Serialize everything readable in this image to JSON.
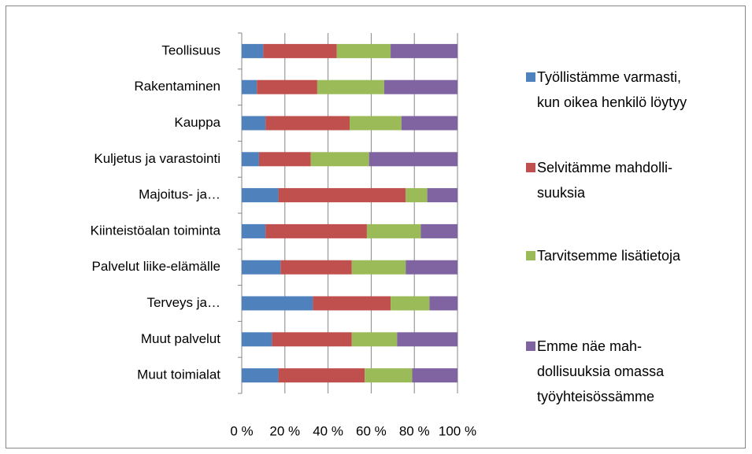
{
  "chart_data": {
    "type": "stacked_barh",
    "categories": [
      "Teollisuus",
      "Rakentaminen",
      "Kauppa",
      "Kuljetus ja varastointi",
      "Majoitus- ja…",
      "Kiinteistöalan toiminta",
      "Palvelut liike-elämälle",
      "Terveys ja…",
      "Muut palvelut",
      "Muut toimialat"
    ],
    "series": [
      {
        "name": "Työllistämme varmasti,\nkun oikea henkilö löytyy",
        "color": "#4f81bd",
        "values": [
          10,
          7,
          11,
          8,
          17,
          11,
          18,
          33,
          14,
          17
        ]
      },
      {
        "name": "Selvitämme mahdolli-\nsuuksia",
        "color": "#c0504d",
        "values": [
          34,
          28,
          39,
          24,
          59,
          47,
          33,
          36,
          37,
          40
        ]
      },
      {
        "name": "Tarvitsemme lisätietoja",
        "color": "#9bbb59",
        "values": [
          25,
          31,
          24,
          27,
          10,
          25,
          25,
          18,
          21,
          22
        ]
      },
      {
        "name": "Emme näe mah-\ndollisuuksia omassa\ntyöyhteisössämme",
        "color": "#8064a2",
        "values": [
          31,
          34,
          26,
          41,
          14,
          17,
          24,
          13,
          28,
          21
        ]
      }
    ],
    "xlim": [
      0,
      100
    ],
    "xticks": [
      {
        "value": 0,
        "label": "0 %"
      },
      {
        "value": 20,
        "label": "20 %"
      },
      {
        "value": 40,
        "label": "40 %"
      },
      {
        "value": 60,
        "label": "60 %"
      },
      {
        "value": 80,
        "label": "80 %"
      },
      {
        "value": 100,
        "label": "100 %"
      }
    ],
    "grid": true,
    "legend": "right"
  }
}
